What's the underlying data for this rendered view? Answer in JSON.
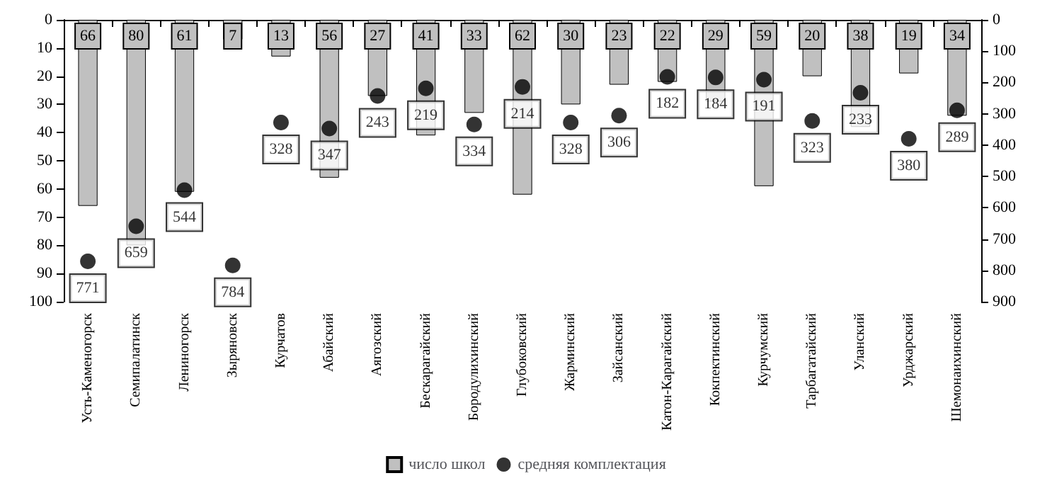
{
  "chart_data": {
    "type": "bar",
    "categories": [
      "Усть-Каменогорск",
      "Семипалатинск",
      "Лениногорск",
      "Зыряновск",
      "Курчатов",
      "Абайский",
      "Аягозский",
      "Бескарагайский",
      "Бородулихинский",
      "Глубоковский",
      "Жарминский",
      "Зайсанский",
      "Катон-Карагайский",
      "Кокпектинский",
      "Курчумский",
      "Тарбагатайский",
      "Уланский",
      "Урджарский",
      "Шемонаихинский"
    ],
    "series": [
      {
        "name": "число школ",
        "color": "#c0c0c0",
        "values": [
          66,
          80,
          61,
          7,
          13,
          56,
          27,
          41,
          33,
          62,
          30,
          23,
          22,
          29,
          59,
          20,
          38,
          19,
          34
        ]
      },
      {
        "name": "средняя комплектация",
        "type": "scatter",
        "axis": "y2",
        "color": "#000000",
        "values": [
          771,
          659,
          544,
          784,
          328,
          347,
          243,
          219,
          334,
          214,
          328,
          306,
          182,
          184,
          191,
          323,
          233,
          380,
          289
        ]
      }
    ],
    "ylim": [
      100,
      0
    ],
    "yticks": [
      0,
      10,
      20,
      30,
      40,
      50,
      60,
      70,
      80,
      90,
      100
    ],
    "y2lim": [
      900,
      0
    ],
    "y2ticks": [
      0,
      100,
      200,
      300,
      400,
      500,
      600,
      700,
      800,
      900
    ],
    "data_labels": true,
    "marker": "circle",
    "grid": false,
    "legend": "bottom"
  }
}
